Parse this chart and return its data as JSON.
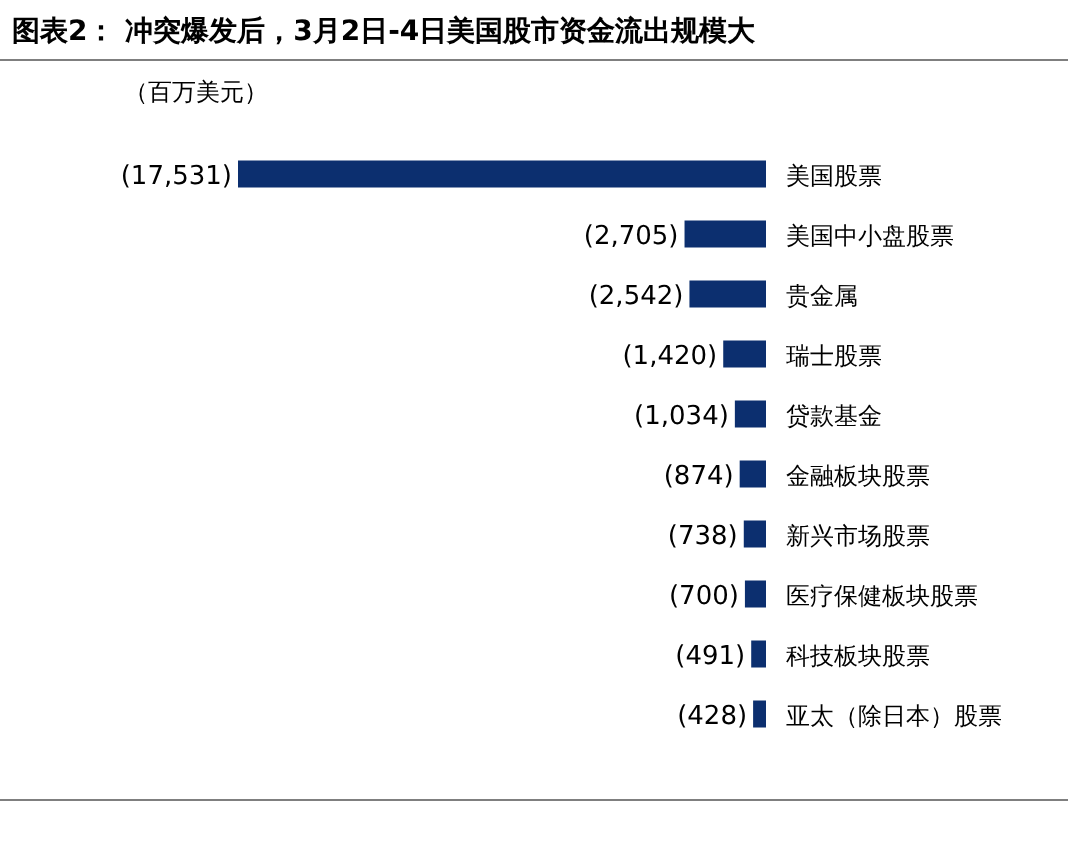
{
  "chart_data": {
    "type": "bar",
    "orientation": "horizontal",
    "title": "图表2：  冲突爆发后，3月2日-4日美国股市资金流出规模大",
    "subtitle": "（百万美元）",
    "categories": [
      "美国股票",
      "美国中小盘股票",
      "贵金属",
      "瑞士股票",
      "贷款基金",
      "金融板块股票",
      "新兴市场股票",
      "医疗保健板块股票",
      "科技板块股票",
      "亚太（除日本）股票"
    ],
    "values": [
      -17531,
      -2705,
      -2542,
      -1420,
      -1034,
      -874,
      -738,
      -700,
      -491,
      -428
    ],
    "value_labels": [
      "(17,531)",
      "(2,705)",
      "(2,542)",
      "(1,420)",
      "(1,034)",
      "(874)",
      "(738)",
      "(700)",
      "(491)",
      "(428)"
    ],
    "color": "#0c2f6f",
    "tick_labels": "y"
  }
}
